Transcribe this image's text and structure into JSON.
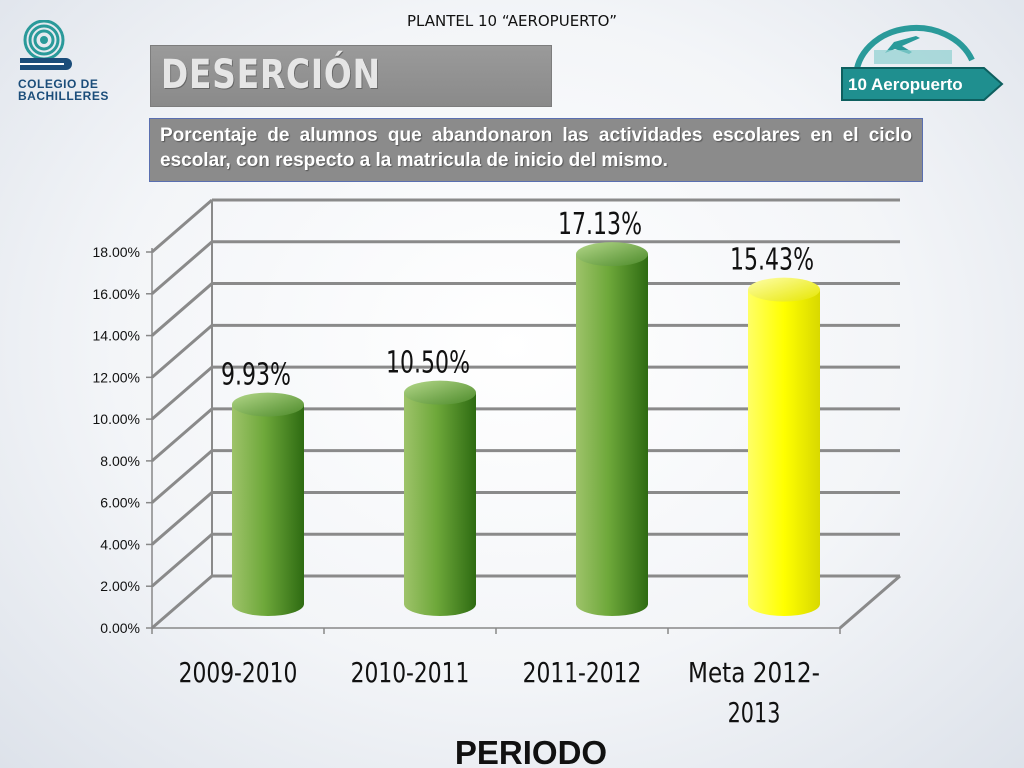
{
  "header": {
    "plantel": "PLANTEL  10 “AEROPUERTO”",
    "title": "DESERCIÓN",
    "description": "Porcentaje de alumnos que abandonaron las actividades escolares en el ciclo escolar, con respecto a la matricula de inicio del mismo."
  },
  "logos": {
    "left_text_line1": "COLEGIO DE",
    "left_text_line2": "BACHILLERES",
    "right_text": "10 Aeropuerto"
  },
  "colors": {
    "green_bar": "#4c8a2a",
    "yellow_bar": "#ffff00",
    "logo_blue": "#1b4d7a",
    "logo_teal": "#2a9a9a"
  },
  "chart_data": {
    "type": "bar",
    "categories": [
      "2009-2010",
      "2010-2011",
      "2011-2012",
      "Meta 2012-2013"
    ],
    "category_lines": [
      [
        "2009-2010"
      ],
      [
        "2010-2011"
      ],
      [
        "2011-2012"
      ],
      [
        "Meta 2012-",
        "2013"
      ]
    ],
    "values": [
      9.93,
      10.5,
      17.13,
      15.43
    ],
    "data_labels": [
      "9.93%",
      "10.50%",
      "17.13%",
      "15.43%"
    ],
    "bar_colors": [
      "green",
      "green",
      "green",
      "yellow"
    ],
    "ylim": [
      0,
      18
    ],
    "yticks": [
      0,
      2,
      4,
      6,
      8,
      10,
      12,
      14,
      16,
      18
    ],
    "ytick_labels": [
      "0.00%",
      "2.00%",
      "4.00%",
      "6.00%",
      "8.00%",
      "10.00%",
      "12.00%",
      "14.00%",
      "16.00%",
      "18.00%"
    ],
    "xlabel": "PERIODO",
    "title": "",
    "ylabel": "",
    "grid": true
  }
}
